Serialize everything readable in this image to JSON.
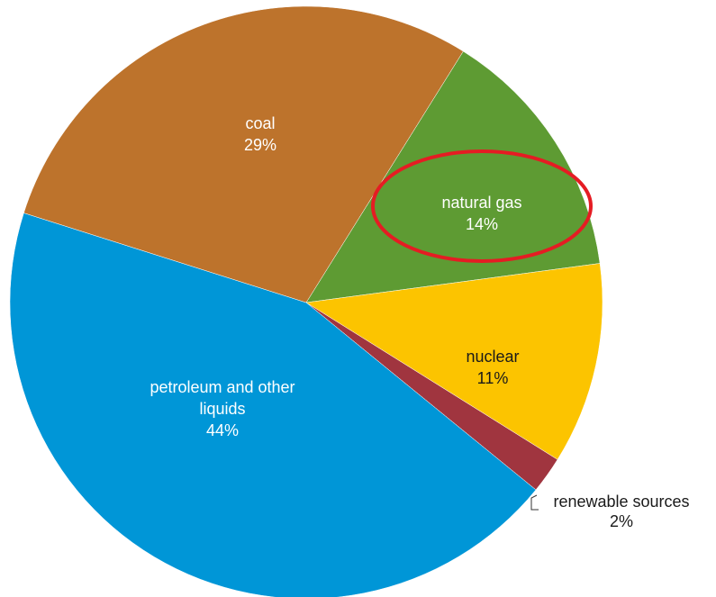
{
  "chart_data": {
    "type": "pie",
    "title": "",
    "start_angle_deg": 32,
    "slices": [
      {
        "label": "natural gas",
        "pct_text": "14%",
        "value": 14,
        "color": "#5e9b33"
      },
      {
        "label": "nuclear",
        "pct_text": "11%",
        "value": 11,
        "color": "#fcc400"
      },
      {
        "label": "renewable sources",
        "pct_text": "2%",
        "value": 2,
        "color": "#a0353f"
      },
      {
        "label": "petroleum and other liquids",
        "pct_text": "44%",
        "value": 44,
        "color": "#0096d7"
      },
      {
        "label": "coal",
        "pct_text": "29%",
        "value": 29,
        "color": "#bd732c"
      }
    ],
    "label_colors": {
      "inside_light": "#ffffff",
      "inside_dark": "#1a1a1a",
      "outside": "#1a1a1a"
    },
    "annotation": {
      "type": "circle-highlight",
      "target": "natural gas",
      "color": "#e51c23"
    }
  }
}
